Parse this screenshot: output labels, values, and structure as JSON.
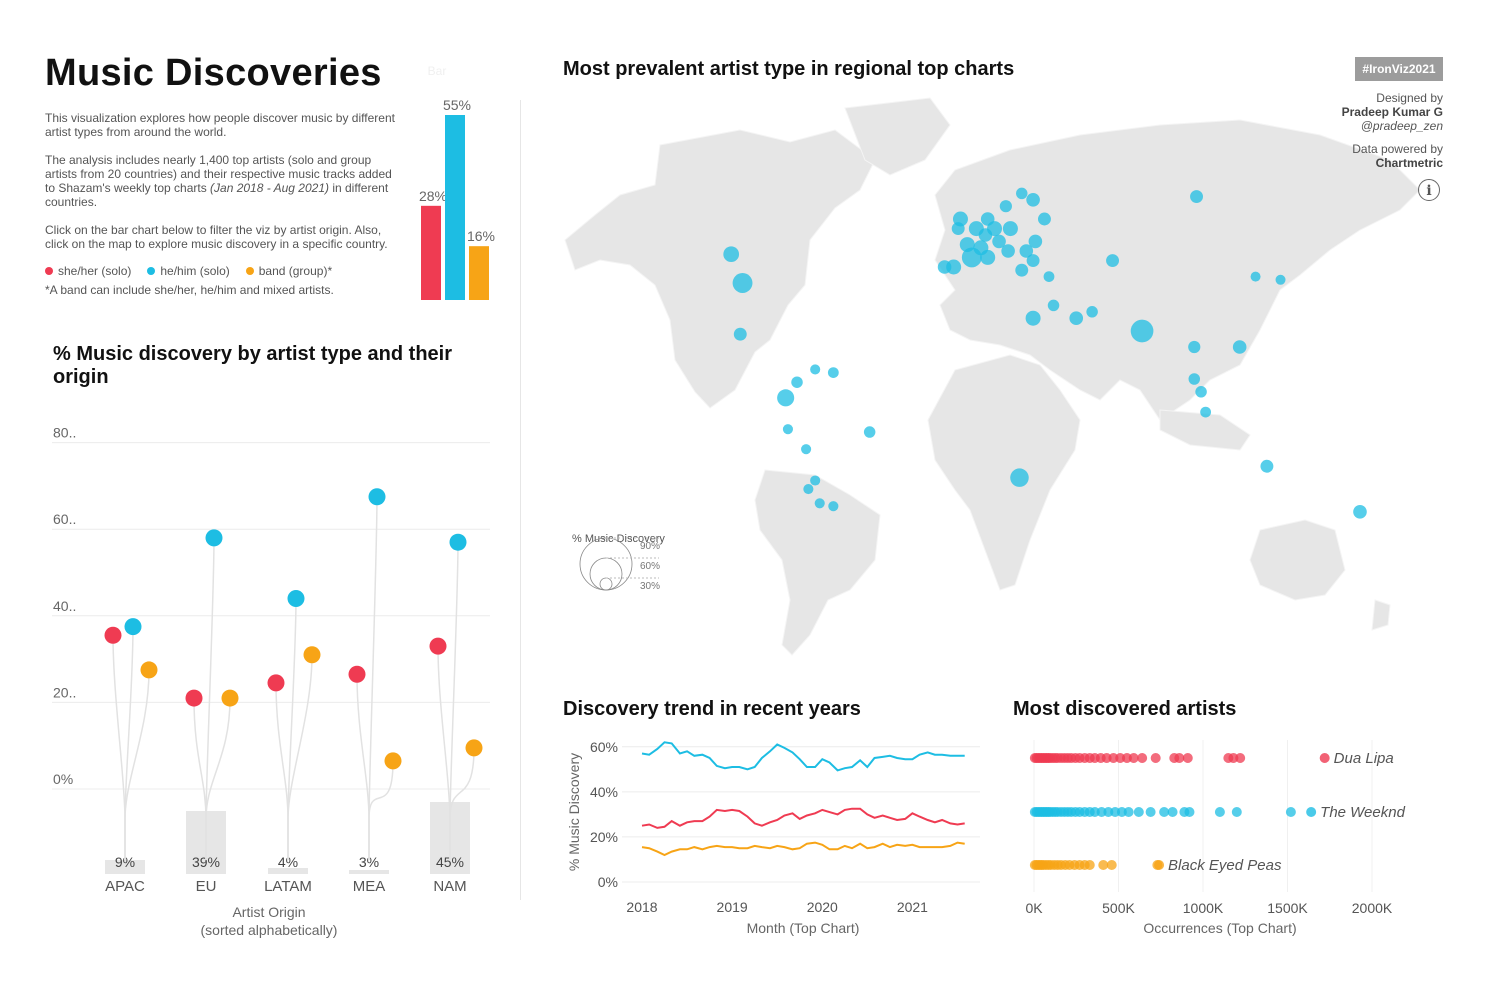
{
  "header": {
    "title": "Music Discoveries",
    "intro_1": "This visualization explores how people discover music by different artist types from around the world.",
    "intro_2_a": "The analysis includes nearly 1,400 top artists (solo and group artists from 20 countries) and their respective music tracks added to Shazam's weekly top charts ",
    "intro_2_b": "(Jan 2018 - Aug 2021)",
    "intro_2_c": " in different countries.",
    "intro_3": "Click on the bar chart below to filter the viz by artist origin. Also, click on the map to explore music discovery in a specific country.",
    "footnote": "*A band can include she/her, he/him and mixed artists."
  },
  "legend": [
    {
      "label": "she/her (solo)",
      "color": "#ef3b52"
    },
    {
      "label": "he/him (solo)",
      "color": "#1dbde3"
    },
    {
      "label": "band (group)*",
      "color": "#f7a416"
    }
  ],
  "colors": {
    "she": "#ef3b52",
    "he": "#1dbde3",
    "band": "#f7a416"
  },
  "tag": "#IronViz2021",
  "credits": {
    "designed_by": "Designed by",
    "author": "Pradeep Kumar G",
    "handle": "@pradeep_zen",
    "powered_by": "Data powered by",
    "source": "Chartmetric"
  },
  "sections": {
    "origin_title": "% Music discovery by artist type and their origin",
    "map_title": "Most prevalent artist type in regional top charts",
    "trend_title": "Discovery trend in recent years",
    "artists_title": "Most discovered artists"
  },
  "chart_data": [
    {
      "id": "summary_bars",
      "type": "bar",
      "categories": [
        "she/her (solo)",
        "he/him (solo)",
        "band (group)*"
      ],
      "values": [
        28,
        55,
        16
      ],
      "labels": [
        "28%",
        "55%",
        "16%"
      ],
      "header_label": "Bar",
      "ylim": [
        0,
        55
      ]
    },
    {
      "id": "origin",
      "type": "scatter",
      "xlabel": "Artist Origin",
      "xlabel_sub": "(sorted alphabetically)",
      "y_ticks": [
        "80..",
        "60..",
        "40..",
        "20..",
        "0%"
      ],
      "y_tick_values": [
        80,
        60,
        40,
        20,
        0
      ],
      "ylim": [
        0,
        80
      ],
      "categories": [
        "APAC",
        "EU",
        "LATAM",
        "MEA",
        "NAM"
      ],
      "share": [
        9,
        39,
        4,
        3,
        45
      ],
      "share_labels": [
        "9%",
        "39%",
        "4%",
        "3%",
        "45%"
      ],
      "series": [
        {
          "name": "she/her (solo)",
          "values": [
            35.5,
            21,
            24.5,
            26.5,
            33
          ]
        },
        {
          "name": "he/him (solo)",
          "values": [
            37.5,
            58,
            44,
            67.5,
            57
          ]
        },
        {
          "name": "band (group)*",
          "values": [
            27.5,
            21,
            31,
            6.5,
            9.5
          ]
        }
      ]
    },
    {
      "id": "trend",
      "type": "line",
      "xlabel": "Month (Top Chart)",
      "ylabel": "% Music Discovery",
      "x_ticks": [
        "2018",
        "2019",
        "2020",
        "2021"
      ],
      "y_ticks": [
        "60%",
        "40%",
        "20%",
        "0%"
      ],
      "y_tick_values": [
        60,
        40,
        20,
        0
      ],
      "xlim": [
        2018,
        2021.75
      ],
      "ylim": [
        0,
        65
      ],
      "x": [
        2018.0,
        2018.08,
        2018.17,
        2018.25,
        2018.33,
        2018.42,
        2018.5,
        2018.58,
        2018.67,
        2018.75,
        2018.83,
        2018.92,
        2019.0,
        2019.08,
        2019.17,
        2019.25,
        2019.33,
        2019.42,
        2019.5,
        2019.58,
        2019.67,
        2019.75,
        2019.83,
        2019.92,
        2020.0,
        2020.08,
        2020.17,
        2020.25,
        2020.33,
        2020.42,
        2020.5,
        2020.58,
        2020.67,
        2020.75,
        2020.83,
        2020.92,
        2021.0,
        2021.08,
        2021.17,
        2021.25,
        2021.33,
        2021.42,
        2021.5,
        2021.58
      ],
      "series": [
        {
          "name": "he/him (solo)",
          "values": [
            57,
            56.5,
            59,
            62,
            61.5,
            57,
            58,
            56,
            56.5,
            55,
            51.5,
            50.5,
            51,
            51,
            50,
            51,
            55,
            58,
            61,
            59.5,
            57.5,
            54.5,
            51,
            51,
            54.5,
            53,
            49.5,
            50.5,
            51,
            54,
            51,
            55,
            55.5,
            56,
            55,
            54.5,
            54.5,
            56.5,
            57.5,
            56.5,
            56.5,
            56,
            56,
            56
          ]
        },
        {
          "name": "she/her (solo)",
          "values": [
            25,
            25.5,
            24,
            24.5,
            27,
            25,
            26.5,
            27,
            27,
            29,
            32,
            31.5,
            32,
            31.5,
            29,
            26,
            25,
            26.5,
            27.5,
            29.5,
            30.5,
            28,
            29.5,
            30.5,
            32,
            31,
            30,
            32,
            32.5,
            32.5,
            30,
            28.5,
            29.5,
            28.5,
            27.5,
            28,
            30.5,
            29,
            27.5,
            26.5,
            27.5,
            26,
            25.5,
            26
          ]
        },
        {
          "name": "band (group)*",
          "values": [
            15.5,
            15,
            13.5,
            12,
            13.5,
            14.5,
            14.5,
            15.5,
            14.5,
            15.5,
            16,
            15.5,
            15.5,
            15,
            15,
            16,
            15.5,
            15,
            16,
            15.5,
            14.5,
            15,
            17,
            17.5,
            16.5,
            14.5,
            14.5,
            16,
            15,
            17,
            15,
            15.5,
            17,
            15.5,
            16.5,
            16,
            16.5,
            15.5,
            15.5,
            15.5,
            15.5,
            16,
            17.5,
            17
          ]
        }
      ]
    },
    {
      "id": "artists",
      "type": "scatter",
      "xlabel": "Occurrences (Top Chart)",
      "x_ticks": [
        "0K",
        "500K",
        "1000K",
        "1500K",
        "2000K"
      ],
      "x_tick_values": [
        0,
        500000,
        1000000,
        1500000,
        2000000
      ],
      "xlim": [
        0,
        2000000
      ],
      "series": [
        {
          "name": "she/her (solo)",
          "top_artist": "Dua Lipa",
          "top_value": 1720000,
          "values": [
            5000,
            15000,
            25000,
            35000,
            45000,
            55000,
            65000,
            75000,
            85000,
            95000,
            110000,
            125000,
            140000,
            160000,
            180000,
            200000,
            220000,
            245000,
            270000,
            300000,
            330000,
            360000,
            395000,
            430000,
            470000,
            510000,
            550000,
            590000,
            640000,
            720000,
            830000,
            860000,
            910000,
            1150000,
            1180000,
            1220000
          ]
        },
        {
          "name": "he/him (solo)",
          "top_artist": "The Weeknd",
          "top_value": 1640000,
          "values": [
            5000,
            15000,
            25000,
            35000,
            45000,
            55000,
            65000,
            75000,
            85000,
            95000,
            110000,
            125000,
            140000,
            160000,
            180000,
            200000,
            220000,
            245000,
            270000,
            300000,
            330000,
            360000,
            400000,
            440000,
            480000,
            520000,
            560000,
            620000,
            690000,
            770000,
            820000,
            890000,
            920000,
            1100000,
            1200000,
            1520000
          ]
        },
        {
          "name": "band (group)*",
          "top_artist": "Black Eyed Peas",
          "top_value": 740000,
          "values": [
            5000,
            15000,
            25000,
            35000,
            45000,
            55000,
            70000,
            85000,
            100000,
            120000,
            140000,
            160000,
            185000,
            210000,
            240000,
            270000,
            300000,
            330000,
            410000,
            460000,
            730000
          ]
        }
      ]
    },
    {
      "id": "map",
      "type": "scatter",
      "legend_title": "% Music Discovery",
      "legend_values": [
        "90%",
        "60%",
        "30%"
      ],
      "series": [
        {
          "name": "he/him (solo)",
          "lonlat": [
            [
              -103,
              44,
              56
            ],
            [
              -98,
              35,
              62
            ],
            [
              -99,
              19,
              52
            ],
            [
              -74,
              4,
              50
            ],
            [
              -66,
              8,
              48
            ],
            [
              -58,
              7,
              49
            ],
            [
              -79,
              -1,
              58
            ],
            [
              -78,
              -12,
              48
            ],
            [
              -70,
              -19,
              48
            ],
            [
              -69,
              -33,
              48
            ],
            [
              -64,
              -38,
              48
            ],
            [
              -58,
              -39,
              48
            ],
            [
              -42,
              -13,
              50
            ],
            [
              -3,
              52,
              52
            ],
            [
              -2,
              55,
              55
            ],
            [
              1,
              47,
              55
            ],
            [
              5,
              52,
              55
            ],
            [
              9,
              50,
              53
            ],
            [
              13,
              52,
              55
            ],
            [
              18,
              59,
              51
            ],
            [
              25,
              63,
              50
            ],
            [
              10,
              55,
              53
            ],
            [
              20,
              52,
              55
            ],
            [
              15,
              48,
              53
            ],
            [
              7,
              46,
              55
            ],
            [
              3,
              43,
              62
            ],
            [
              10,
              43,
              55
            ],
            [
              19,
              45,
              53
            ],
            [
              27,
              45,
              53
            ],
            [
              25,
              39,
              52
            ],
            [
              31,
              48,
              53
            ],
            [
              35,
              55,
              52
            ],
            [
              -5,
              40,
              55
            ],
            [
              -9,
              40,
              53
            ],
            [
              30,
              42,
              52
            ],
            [
              37,
              37,
              49
            ],
            [
              39,
              28,
              50
            ],
            [
              30,
              24,
              55
            ],
            [
              49,
              24,
              53
            ],
            [
              56,
              26,
              50
            ],
            [
              78,
              20,
              66
            ],
            [
              65,
              42,
              52
            ],
            [
              101,
              15,
              51
            ],
            [
              101,
              5,
              50
            ],
            [
              104,
              1,
              50
            ],
            [
              106,
              -6,
              49
            ],
            [
              121,
              15,
              53
            ],
            [
              128,
              37,
              46
            ],
            [
              139,
              36,
              47
            ],
            [
              102,
              62,
              52
            ],
            [
              30,
              61,
              53
            ],
            [
              -66,
              -30,
              48
            ],
            [
              133,
              -25,
              52
            ],
            [
              174,
              -41,
              53
            ],
            [
              24,
              -29,
              60
            ]
          ]
        }
      ]
    }
  ]
}
